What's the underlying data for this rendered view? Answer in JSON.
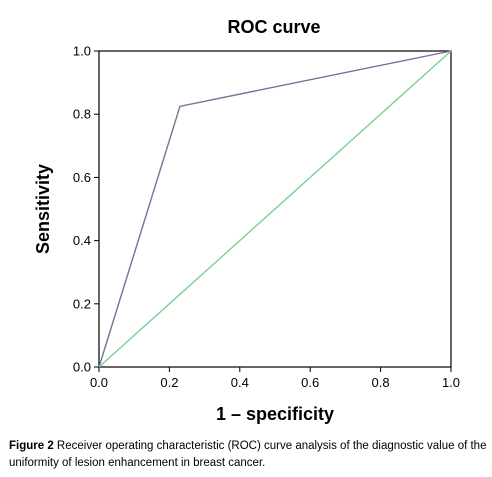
{
  "chart_data": {
    "type": "line",
    "title": "ROC curve",
    "xlabel": "1 – specificity",
    "ylabel": "Sensitivity",
    "xlim": [
      0.0,
      1.0
    ],
    "ylim": [
      0.0,
      1.0
    ],
    "xticks": [
      "0.0",
      "0.2",
      "0.4",
      "0.6",
      "0.8",
      "1.0"
    ],
    "yticks": [
      "0.0",
      "0.2",
      "0.4",
      "0.6",
      "0.8",
      "1.0"
    ],
    "grid": false,
    "series": [
      {
        "color": "#6f7596",
        "x": [
          0.0,
          0.23,
          1.0
        ],
        "y": [
          0.0,
          0.825,
          1.0
        ]
      },
      {
        "color": "#7ccf8f",
        "x": [
          0.0,
          1.0
        ],
        "y": [
          0.0,
          1.0
        ]
      }
    ]
  },
  "caption": {
    "label": "Figure 2",
    "text": " Receiver operating characteristic (ROC) curve analysis of the diagnostic value of the uniformity of lesion enhancement in breast cancer."
  }
}
